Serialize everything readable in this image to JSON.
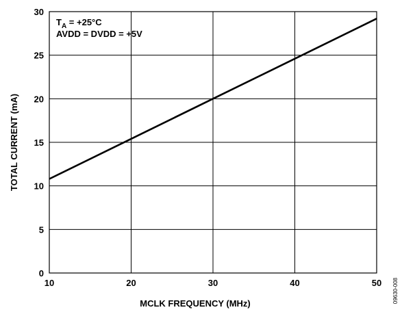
{
  "chart_data": {
    "type": "line",
    "title": "",
    "xlabel": "MCLK FREQUENCY (MHz)",
    "ylabel": "TOTAL CURRENT (mA)",
    "xlim": [
      10,
      50
    ],
    "ylim": [
      0,
      30
    ],
    "xticks": [
      10,
      20,
      30,
      40,
      50
    ],
    "yticks": [
      0,
      5,
      10,
      15,
      20,
      25,
      30
    ],
    "grid": true,
    "series": [
      {
        "x": [
          10,
          20,
          30,
          40,
          50
        ],
        "y": [
          10.8,
          15.4,
          20.0,
          24.6,
          29.2
        ]
      }
    ],
    "annotations": {
      "ta_label": "T",
      "ta_subscript": "A",
      "ta_value": " = +25°C",
      "supply": "AVDD = DVDD = +5V"
    },
    "figure_id": "09630-008",
    "colors": {
      "line": "#000000",
      "grid": "#000000",
      "background": "#ffffff"
    }
  }
}
